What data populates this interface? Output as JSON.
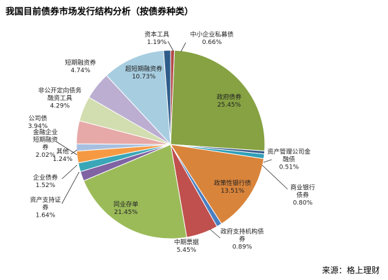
{
  "title": "我国目前债券市场发行结构分析（按债券种类）",
  "source": "来源：格上理财",
  "chart_data": {
    "type": "pie",
    "title": "我国目前债券市场发行结构分析（按债券种类）",
    "slices": [
      {
        "name": "中小企业私募债",
        "label_lines": [
          "中小企业私募债"
        ],
        "value": 0.66,
        "value_label": "0.66%",
        "color": "#b44a4a"
      },
      {
        "name": "政府债券",
        "label_lines": [
          "政府债券"
        ],
        "value": 25.45,
        "value_label": "25.45%",
        "color": "#86a243"
      },
      {
        "name": "资产管理公司金融债",
        "label_lines": [
          "资产管理公司金",
          "融债"
        ],
        "value": 0.51,
        "value_label": "0.51%",
        "color": "#3a5d8c"
      },
      {
        "name": "商业银行债券",
        "label_lines": [
          "商业银行",
          "债券"
        ],
        "value": 0.8,
        "value_label": "0.80%",
        "color": "#2f9fb8"
      },
      {
        "name": "政策性银行债",
        "label_lines": [
          "政策性银行债"
        ],
        "value": 13.51,
        "value_label": "13.51%",
        "color": "#d9843b"
      },
      {
        "name": "政府支持机构债券",
        "label_lines": [
          "政府支持机构债",
          "券"
        ],
        "value": 0.89,
        "value_label": "0.89%",
        "color": "#4a7fc1"
      },
      {
        "name": "中期票据",
        "label_lines": [
          "中期票据"
        ],
        "value": 5.45,
        "value_label": "5.45%",
        "color": "#c0504d"
      },
      {
        "name": "同业存单",
        "label_lines": [
          "同业存单"
        ],
        "value": 21.45,
        "value_label": "21.45%",
        "color": "#9bbb59"
      },
      {
        "name": "资产支持证券",
        "label_lines": [
          "资产支持证",
          "券"
        ],
        "value": 1.64,
        "value_label": "1.64%",
        "color": "#7f63a3"
      },
      {
        "name": "企业债券",
        "label_lines": [
          "企业债券"
        ],
        "value": 1.52,
        "value_label": "1.52%",
        "color": "#3aa7b8"
      },
      {
        "name": "短期融资券",
        "label_lines": [
          "金融企业",
          "短期融资",
          "券"
        ],
        "value": 2.02,
        "value_label": "2.02%",
        "color": "#f59a43"
      },
      {
        "name": "其他",
        "label_lines": [
          "其他"
        ],
        "value": 1.24,
        "value_label": "1.24%",
        "color": "#a8c0e0"
      },
      {
        "name": "公司债",
        "label_lines": [
          "公司债"
        ],
        "value": 3.94,
        "value_label": "3.94%",
        "color": "#e6a9a7"
      },
      {
        "name": "非公开定向债务融资工具",
        "label_lines": [
          "非公开定向债务",
          "融资工具"
        ],
        "value": 4.29,
        "value_label": "4.29%",
        "color": "#d2ddb0"
      },
      {
        "name": "短期融资券",
        "label_lines": [
          "短期融资券"
        ],
        "value": 4.74,
        "value_label": "4.74%",
        "color": "#bbaed1"
      },
      {
        "name": "超短期融资券",
        "label_lines": [
          "超短期融资券"
        ],
        "value": 10.73,
        "value_label": "10.73%",
        "color": "#a7cde0"
      },
      {
        "name": "资本工具",
        "label_lines": [
          "资本工具"
        ],
        "value": 1.19,
        "value_label": "1.19%",
        "color": "#2f5c8a"
      }
    ],
    "start_angle_deg": 0,
    "direction": "clockwise",
    "legend": "none",
    "data_labels": "name-and-percent"
  }
}
